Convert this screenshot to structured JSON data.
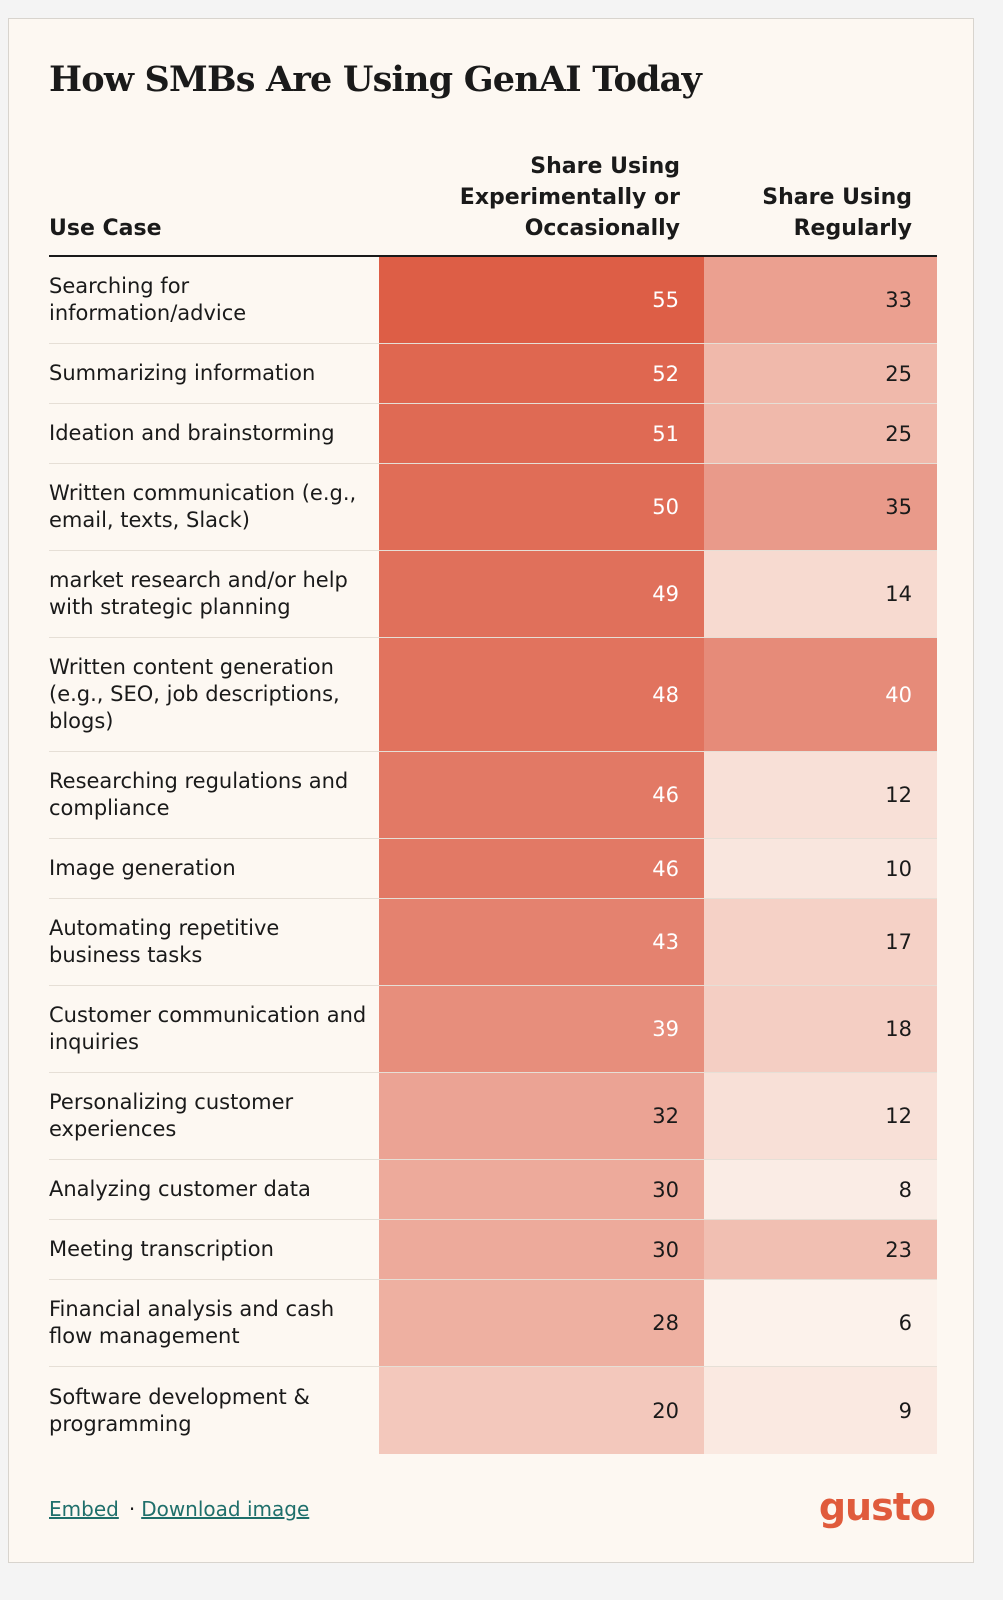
{
  "chart_data": {
    "type": "table",
    "title": "How SMBs Are Using GenAI Today",
    "columns": [
      "Use Case",
      "Share Using Experimentally or Occasionally",
      "Share Using Regularly"
    ],
    "rows": [
      {
        "label": "Searching for information/advice",
        "exp": 55,
        "reg": 33
      },
      {
        "label": "Summarizing information",
        "exp": 52,
        "reg": 25
      },
      {
        "label": "Ideation and brainstorming",
        "exp": 51,
        "reg": 25
      },
      {
        "label": "Written communication (e.g., email, texts, Slack)",
        "exp": 50,
        "reg": 35
      },
      {
        "label": "market research and/or help with strategic planning",
        "exp": 49,
        "reg": 14
      },
      {
        "label": "Written content generation (e.g., SEO, job descriptions, blogs)",
        "exp": 48,
        "reg": 40
      },
      {
        "label": "Researching regulations and compliance",
        "exp": 46,
        "reg": 12
      },
      {
        "label": "Image generation",
        "exp": 46,
        "reg": 10
      },
      {
        "label": "Automating repetitive business tasks",
        "exp": 43,
        "reg": 17
      },
      {
        "label": "Customer communication and inquiries",
        "exp": 39,
        "reg": 18
      },
      {
        "label": "Personalizing customer experiences",
        "exp": 32,
        "reg": 12
      },
      {
        "label": "Analyzing customer data",
        "exp": 30,
        "reg": 8
      },
      {
        "label": "Meeting transcription",
        "exp": 30,
        "reg": 23
      },
      {
        "label": "Financial analysis and cash flow management",
        "exp": 28,
        "reg": 6
      },
      {
        "label": "Software development & programming",
        "exp": 20,
        "reg": 9
      }
    ],
    "colors": {
      "accent": "#dc5b43"
    }
  },
  "footer": {
    "embed": "Embed",
    "separator": "·",
    "download": "Download image",
    "logo": "gusto"
  }
}
